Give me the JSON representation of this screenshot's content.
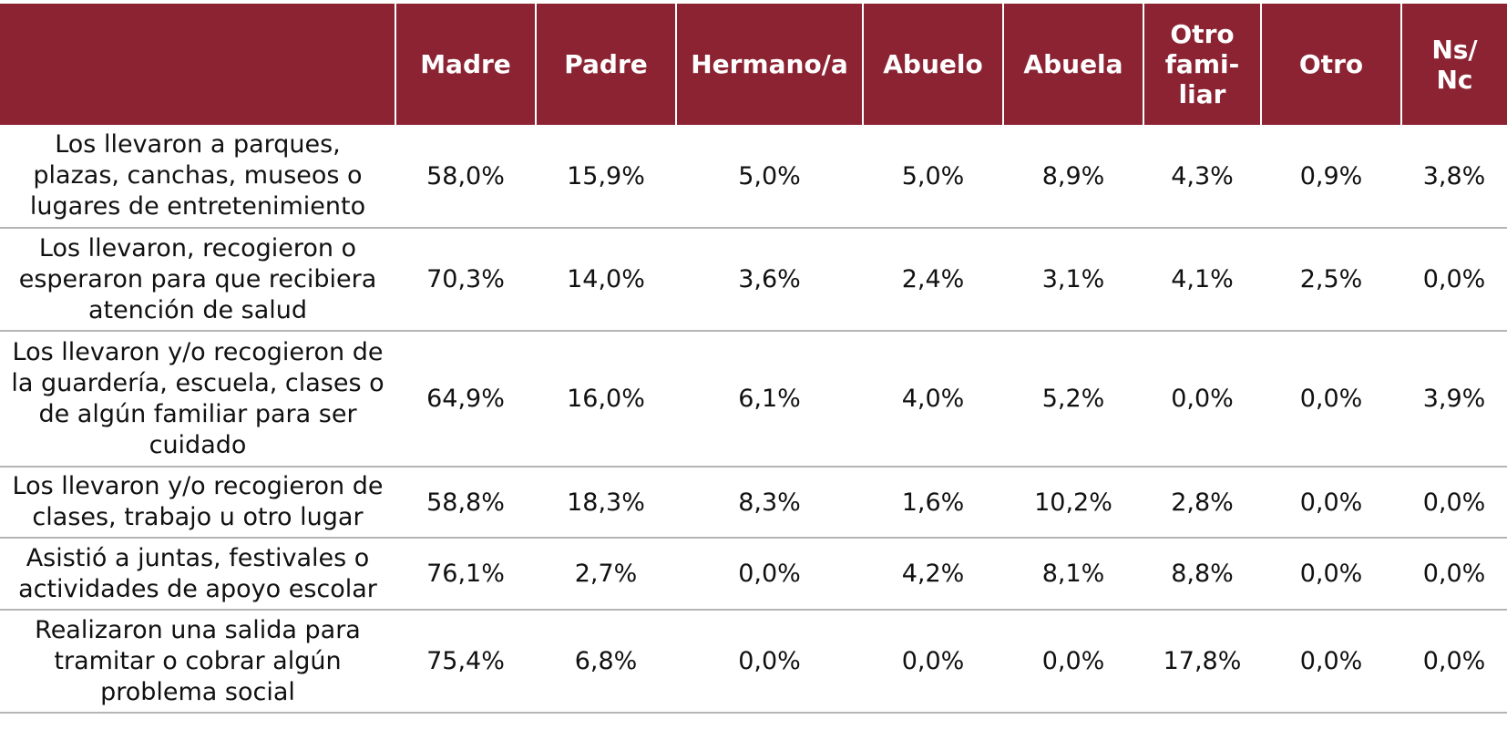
{
  "table": {
    "headers": [
      "",
      "Madre",
      "Padre",
      "Hermano/a",
      "Abuelo",
      "Abuela",
      "Otro\nfami-\nliar",
      "Otro",
      "Ns/\nNc"
    ],
    "rows": [
      {
        "label": "Los llevaron a parques,\nplazas, canchas, museos o\nlugares de entretenimiento",
        "values": [
          "58,0%",
          "15,9%",
          "5,0%",
          "5,0%",
          "8,9%",
          "4,3%",
          "0,9%",
          "3,8%"
        ]
      },
      {
        "label": "Los llevaron, recogieron o\nesperaron para que recibiera\natención de salud",
        "values": [
          "70,3%",
          "14,0%",
          "3,6%",
          "2,4%",
          "3,1%",
          "4,1%",
          "2,5%",
          "0,0%"
        ]
      },
      {
        "label": "Los llevaron y/o recogieron de\nla guardería, escuela, clases o\nde algún familiar para ser\ncuidado",
        "values": [
          "64,9%",
          "16,0%",
          "6,1%",
          "4,0%",
          "5,2%",
          "0,0%",
          "0,0%",
          "3,9%"
        ]
      },
      {
        "label": "Los llevaron y/o recogieron de\nclases, trabajo u otro lugar",
        "values": [
          "58,8%",
          "18,3%",
          "8,3%",
          "1,6%",
          "10,2%",
          "2,8%",
          "0,0%",
          "0,0%"
        ]
      },
      {
        "label": "Asistió a juntas, festivales o\nactividades de apoyo escolar",
        "values": [
          "76,1%",
          "2,7%",
          "0,0%",
          "4,2%",
          "8,1%",
          "8,8%",
          "0,0%",
          "0,0%"
        ]
      },
      {
        "label": "Realizaron una salida para\ntramitar o cobrar algún\nproblema social",
        "values": [
          "75,4%",
          "6,8%",
          "0,0%",
          "0,0%",
          "0,0%",
          "17,8%",
          "0,0%",
          "0,0%"
        ]
      }
    ],
    "colors": {
      "header_bg": "#8b2332",
      "header_text": "#ffffff",
      "divider": "#b5b5b5"
    }
  }
}
